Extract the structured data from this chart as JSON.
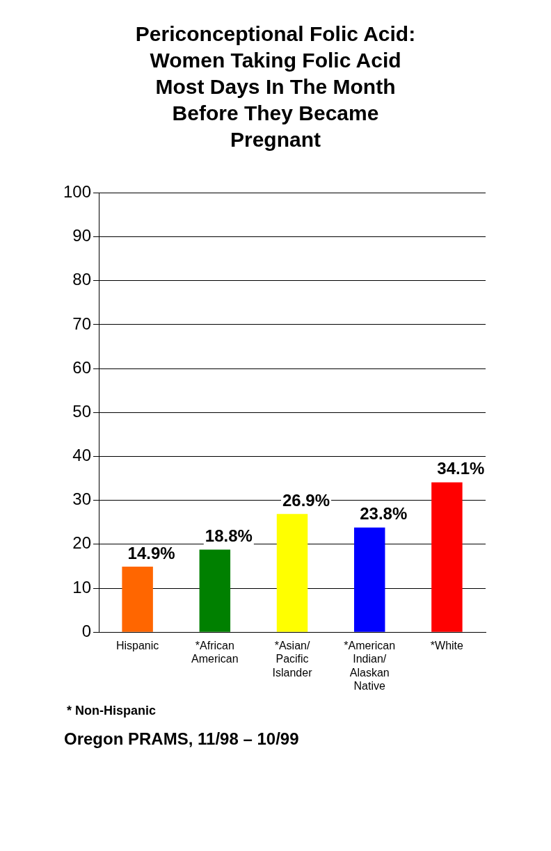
{
  "chart_data": {
    "type": "bar",
    "title": "Periconceptional Folic Acid: Women Taking Folic Acid Most Days In The Month Before They Became Pregnant",
    "categories": [
      "Hispanic",
      "*African American",
      "*Asian/ Pacific Islander",
      "*American Indian/ Alaskan Native",
      "*White"
    ],
    "values": [
      14.9,
      18.8,
      26.9,
      23.8,
      34.1
    ],
    "colors": [
      "#ff6600",
      "#008000",
      "#ffff00",
      "#0000ff",
      "#ff0000"
    ],
    "value_labels": [
      "14.9%",
      "18.8%",
      "26.9%",
      "23.8%",
      "34.1%"
    ],
    "ylim": [
      0,
      100
    ],
    "yticks": [
      0,
      10,
      20,
      30,
      40,
      50,
      60,
      70,
      80,
      90,
      100
    ],
    "grid": "y",
    "legend": false,
    "annotations": [
      "* Non-Hispanic",
      "Oregon PRAMS, 11/98 – 10/99"
    ]
  }
}
